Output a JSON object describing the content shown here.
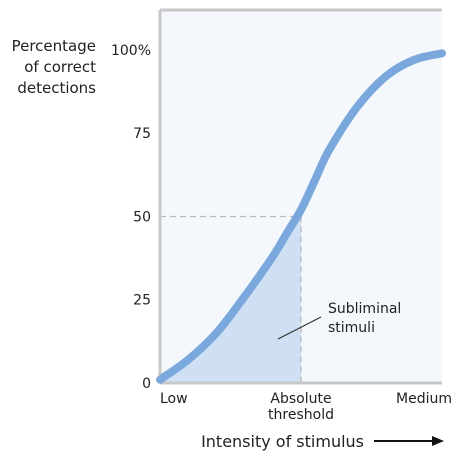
{
  "chart_data": {
    "type": "line",
    "ylabel_lines": [
      "Percentage",
      "of correct",
      "detections"
    ],
    "xlabel": "Intensity of stimulus",
    "x_ticks": [
      {
        "x": 0,
        "lines": [
          "Low"
        ]
      },
      {
        "x": 0.5,
        "lines": [
          "Absolute",
          "threshold"
        ]
      },
      {
        "x": 1,
        "lines": [
          "Medium"
        ]
      }
    ],
    "y_ticks": [
      {
        "y": 0,
        "label": "0"
      },
      {
        "y": 25,
        "label": "25"
      },
      {
        "y": 50,
        "label": "50"
      },
      {
        "y": 75,
        "label": "75"
      },
      {
        "y": 100,
        "label": "100%"
      }
    ],
    "xlim": [
      0,
      1
    ],
    "ylim": [
      0,
      112
    ],
    "series": [
      {
        "x": [
          0,
          0.1,
          0.2,
          0.3,
          0.4,
          0.45,
          0.5,
          0.55,
          0.6,
          0.7,
          0.8,
          0.9,
          1.0
        ],
        "y": [
          1,
          7,
          15,
          26,
          38,
          45,
          52,
          61,
          70,
          83,
          92,
          97,
          99
        ]
      }
    ],
    "threshold": {
      "x": 0.5,
      "y": 50
    },
    "annotation": {
      "lines": [
        "Subliminal",
        "stimuli"
      ]
    },
    "colors": {
      "curve": "#7aa8dc",
      "shade": "#cfe0f4",
      "plot_bg": "#f4f8fd",
      "frame": "#c8c8c8",
      "dash": "#b9b9b9",
      "text": "#222222"
    }
  }
}
